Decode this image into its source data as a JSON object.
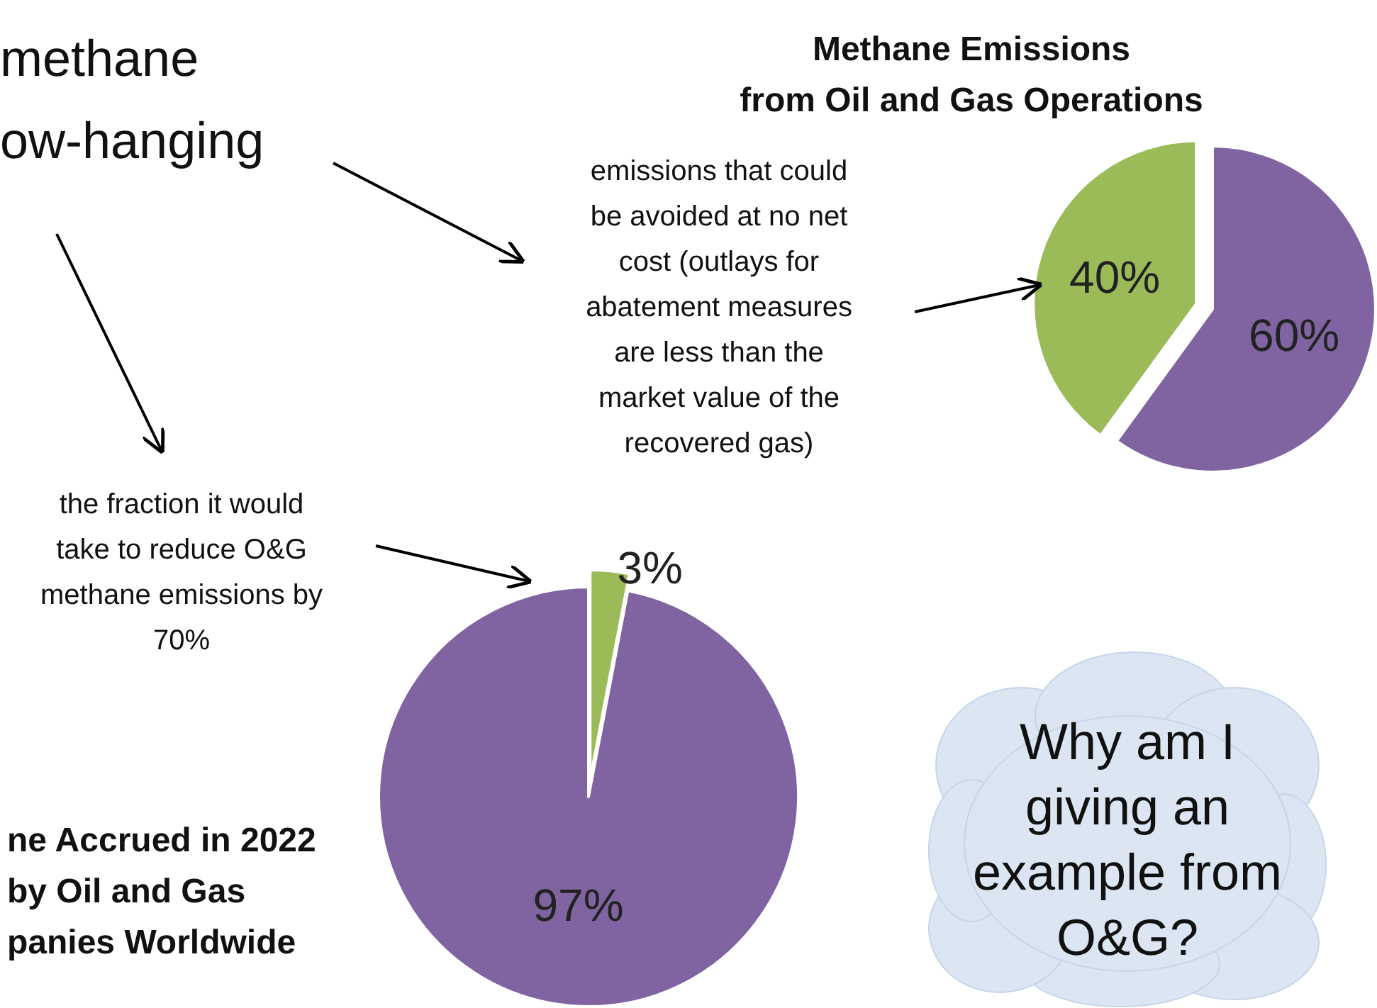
{
  "chart_data": [
    {
      "type": "pie",
      "title": "Methane Emissions\nfrom Oil and Gas Operations",
      "categories": [
        null,
        null
      ],
      "values": [
        60,
        40
      ],
      "colors": [
        "#8064a2",
        "#9bbb59"
      ],
      "value_labels": [
        "60%",
        "40%"
      ],
      "annotations": [
        "methane\now-hanging",
        "emissions that could\nbe avoided at no net\ncost (outlays for\nabatement measures\nare less than the\nmarket value of the\nrecovered gas)"
      ]
    },
    {
      "type": "pie",
      "title": "ne Accrued in 2022\nby Oil and Gas\npanies Worldwide",
      "categories": [
        null,
        null
      ],
      "values": [
        3,
        97
      ],
      "colors": [
        "#9bbb59",
        "#8064a2"
      ],
      "value_labels": [
        "3%",
        "97%"
      ],
      "annotations": [
        "the fraction it would\ntake to reduce O&G\nmethane emissions by\n70%",
        "Why am I\ngiving an\nexample from\nO&G?"
      ]
    }
  ]
}
